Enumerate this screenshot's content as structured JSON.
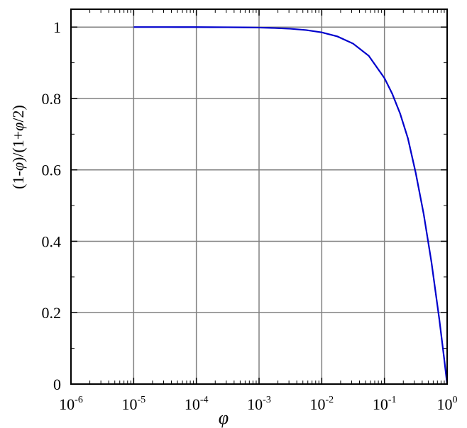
{
  "chart_data": {
    "type": "line",
    "title": "",
    "xlabel": "φ",
    "ylabel": "(1-φ)/(1+φ/2)",
    "ylabel_parts": [
      "(1-",
      "φ",
      ")/(1+",
      "φ",
      "/2)"
    ],
    "x_scale": "log",
    "xlim": [
      1e-06,
      1
    ],
    "ylim": [
      0,
      1.05
    ],
    "x_ticks": [
      {
        "value": 1e-06,
        "base": "10",
        "exp": "-6"
      },
      {
        "value": 1e-05,
        "base": "10",
        "exp": "-5"
      },
      {
        "value": 0.0001,
        "base": "10",
        "exp": "-4"
      },
      {
        "value": 0.001,
        "base": "10",
        "exp": "-3"
      },
      {
        "value": 0.01,
        "base": "10",
        "exp": "-2"
      },
      {
        "value": 0.1,
        "base": "10",
        "exp": "-1"
      },
      {
        "value": 1,
        "base": "10",
        "exp": "0"
      }
    ],
    "y_ticks": [
      {
        "value": 0,
        "label": "0"
      },
      {
        "value": 0.2,
        "label": "0.2"
      },
      {
        "value": 0.4,
        "label": "0.4"
      },
      {
        "value": 0.6,
        "label": "0.6"
      },
      {
        "value": 0.8,
        "label": "0.8"
      },
      {
        "value": 1,
        "label": "1"
      }
    ],
    "grid": true,
    "series": [
      {
        "color": "#0000cc",
        "x": [
          1e-05,
          1.78e-05,
          3.16e-05,
          5.62e-05,
          0.0001,
          0.000178,
          0.000316,
          0.000562,
          0.001,
          0.00178,
          0.00316,
          0.00562,
          0.01,
          0.0178,
          0.0316,
          0.0562,
          0.1,
          0.133,
          0.178,
          0.237,
          0.316,
          0.422,
          0.562,
          0.75,
          0.9,
          1
        ],
        "y": [
          1,
          1,
          1,
          0.9999,
          0.9999,
          0.9997,
          0.9995,
          0.9992,
          0.9985,
          0.9973,
          0.9953,
          0.9916,
          0.9851,
          0.9737,
          0.9537,
          0.9195,
          0.8571,
          0.8134,
          0.7575,
          0.6881,
          0.591,
          0.4771,
          0.3419,
          0.1818,
          0.069,
          0
        ]
      }
    ]
  }
}
